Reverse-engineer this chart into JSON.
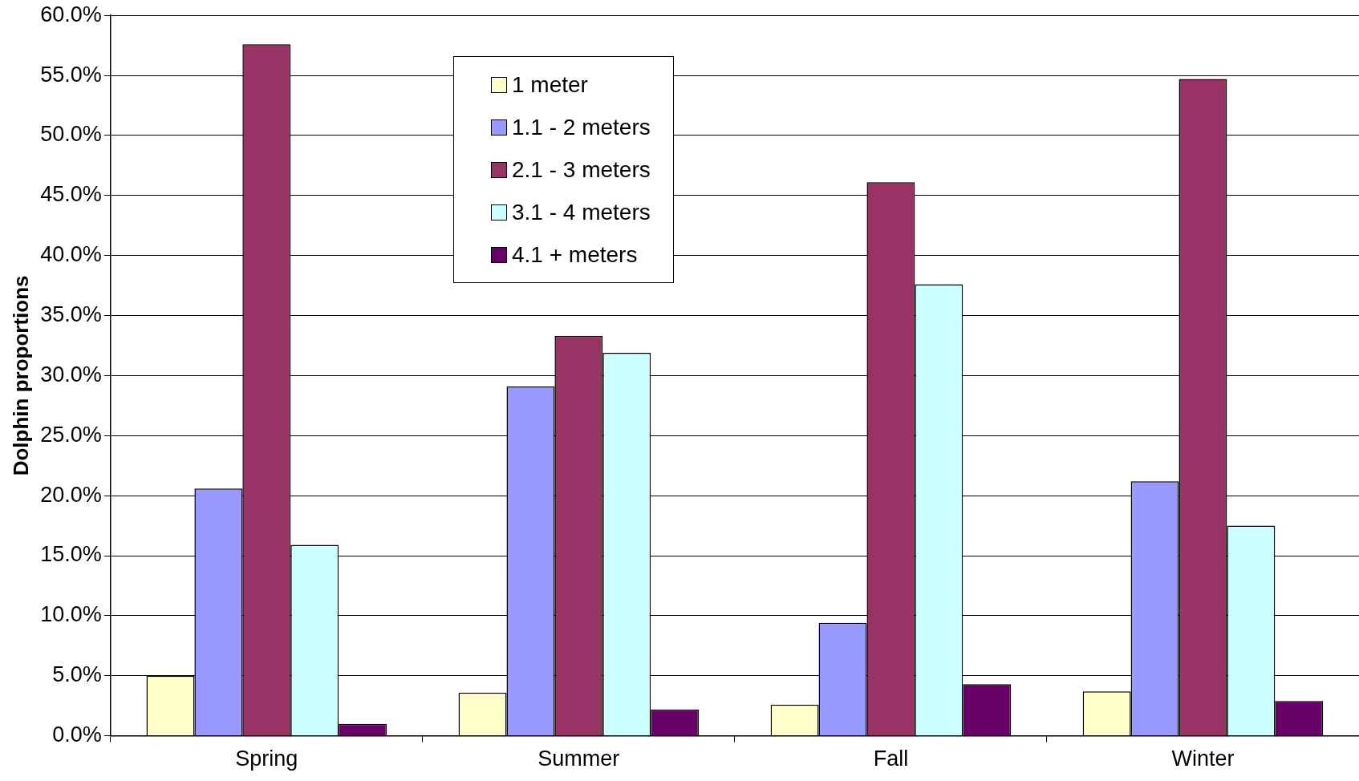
{
  "chart_data": {
    "type": "bar",
    "ylabel": "Dolphin proportions",
    "categories": [
      "Spring",
      "Summer",
      "Fall",
      "Winter"
    ],
    "series": [
      {
        "name": "1 meter",
        "color": "#ffffcc",
        "values": [
          5.0,
          3.6,
          2.6,
          3.7
        ]
      },
      {
        "name": "1.1 - 2 meters",
        "color": "#9999ff",
        "values": [
          20.6,
          29.1,
          9.4,
          21.2
        ]
      },
      {
        "name": "2.1 - 3 meters",
        "color": "#993366",
        "values": [
          57.6,
          33.3,
          46.1,
          54.7
        ]
      },
      {
        "name": "3.1 - 4 meters",
        "color": "#ccffff",
        "values": [
          15.9,
          31.9,
          37.6,
          17.5
        ]
      },
      {
        "name": "4.1 + meters",
        "color": "#660066",
        "values": [
          1.0,
          2.2,
          4.3,
          2.9
        ]
      }
    ],
    "ylim": [
      0,
      60
    ],
    "yticks": [
      {
        "value": 0,
        "label": "0.0%"
      },
      {
        "value": 5,
        "label": "5.0%"
      },
      {
        "value": 10,
        "label": "10.0%"
      },
      {
        "value": 15,
        "label": "15.0%"
      },
      {
        "value": 20,
        "label": "20.0%"
      },
      {
        "value": 25,
        "label": "25.0%"
      },
      {
        "value": 30,
        "label": "30.0%"
      },
      {
        "value": 35,
        "label": "35.0%"
      },
      {
        "value": 40,
        "label": "40.0%"
      },
      {
        "value": 45,
        "label": "45.0%"
      },
      {
        "value": 50,
        "label": "50.0%"
      },
      {
        "value": 55,
        "label": "55.0%"
      },
      {
        "value": 60,
        "label": "60.0%"
      }
    ],
    "grid": "y",
    "legend": "top"
  }
}
